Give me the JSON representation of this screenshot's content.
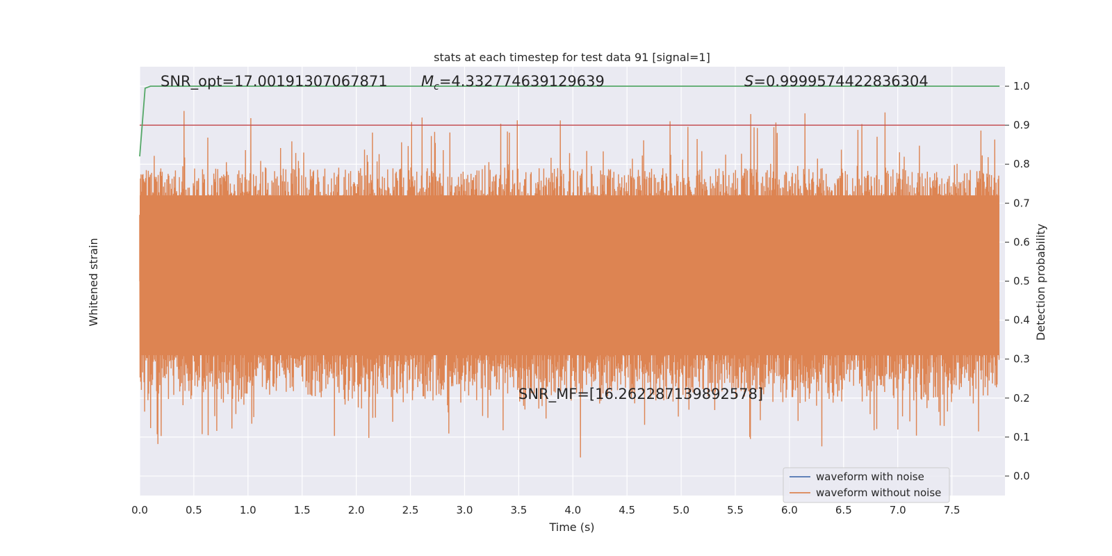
{
  "chart_data": {
    "type": "line",
    "title": "stats at each timestep for test data 91 [signal=1]",
    "xlabel": "Time (s)",
    "ylabel_left": "Whitened strain",
    "ylabel_right": "Detection probability",
    "xlim": [
      0.0,
      7.99
    ],
    "ylim_right": [
      -0.05,
      1.05
    ],
    "x_ticks": [
      "0.0",
      "0.5",
      "1.0",
      "1.5",
      "2.0",
      "2.5",
      "3.0",
      "3.5",
      "4.0",
      "4.5",
      "5.0",
      "5.5",
      "6.0",
      "6.5",
      "7.0",
      "7.5"
    ],
    "y_ticks_right": [
      "0.0",
      "0.1",
      "0.2",
      "0.3",
      "0.4",
      "0.5",
      "0.6",
      "0.7",
      "0.8",
      "0.9",
      "1.0"
    ],
    "grid": true,
    "legend_position": "bottom-right",
    "series": [
      {
        "name": "waveform with noise",
        "color": "#4c72b0"
      },
      {
        "name": "waveform without noise",
        "color": "#dd8452"
      }
    ],
    "threshold": {
      "value": 0.9,
      "color": "#c44e52"
    },
    "detection_probability": {
      "color": "#55a868",
      "x": [
        0.0,
        0.05,
        0.1,
        0.15,
        0.5,
        1.0,
        2.0,
        3.0,
        4.0,
        5.0,
        6.0,
        7.0,
        7.94
      ],
      "y": [
        0.82,
        0.995,
        1.0,
        1.0,
        1.0,
        1.0,
        1.0,
        1.0,
        1.0,
        1.0,
        1.0,
        1.0,
        1.0
      ]
    },
    "annotations": {
      "snr_opt": "SNR_opt=17.00191307067871",
      "mc_symbol": "M",
      "mc_sub": "c",
      "mc_value": "=4.332774639129639",
      "s_symbol": "S",
      "s_value": "=0.9999574422836304",
      "snr_mf": "SNR_MF=[16.262287139892578]"
    }
  }
}
